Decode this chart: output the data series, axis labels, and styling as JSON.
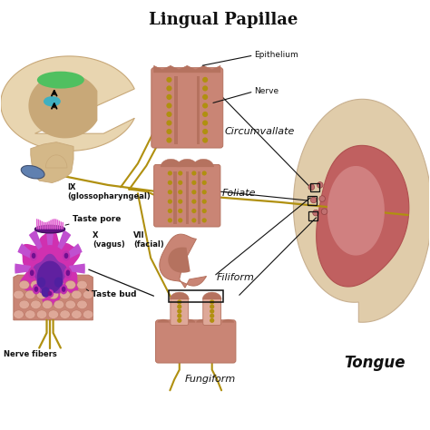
{
  "title": "Lingual Papillae",
  "bg_color": "#ffffff",
  "labels": {
    "title": "Lingual Papillae",
    "epithelium": "Epithelium",
    "nerve": "Nerve",
    "circumvallate": "Circumvallate",
    "foliate": "Foliate",
    "filiform": "Filiform",
    "fungiform": "Fungiform",
    "tongue": "Tongue",
    "taste_pore": "Taste pore",
    "taste_bud": "Taste bud",
    "nerve_fibers": "Nerve fibers",
    "ix": "IX\n(glossopharyngeal)",
    "x": "X\n(vagus)",
    "vii": "VII\n(facial)"
  },
  "colors": {
    "skin_dark": "#b5725f",
    "skin_mid": "#c98575",
    "skin_light": "#dea898",
    "skin_pale": "#efc4b2",
    "brain_outer": "#e8d5b0",
    "brain_inner": "#c8a878",
    "brain_stalk": "#d4b888",
    "yellow_nerve": "#b09010",
    "purple_dark": "#6020a0",
    "purple_mid": "#9030b0",
    "purple_light": "#c050d0",
    "magenta_bright": "#d030b0",
    "magenta_mid": "#b828a0",
    "pink_cilia": "#e060d0",
    "teal_oval": "#40b0c0",
    "green_oval": "#50c060",
    "blue_ganglion": "#6080b0",
    "text_black": "#111111",
    "line_black": "#111111",
    "nerve_yellow": "#a08800",
    "box_outline": "#111111",
    "tongue_outer": "#b05050",
    "tongue_mid": "#c06060",
    "tongue_light": "#d08080",
    "jaw_beige": "#e0ccaa",
    "jaw_border": "#c8b090"
  },
  "figsize": [
    4.74,
    4.74
  ],
  "dpi": 100
}
